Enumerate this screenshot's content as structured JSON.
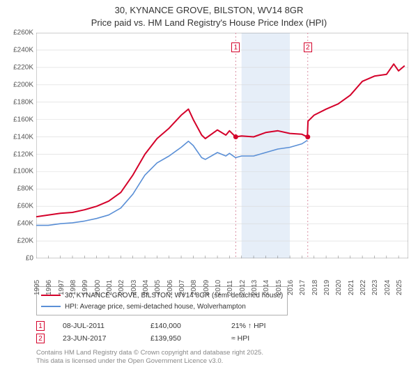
{
  "title": {
    "line1": "30, KYNANCE GROVE, BILSTON, WV14 8GR",
    "line2": "Price paid vs. HM Land Registry's House Price Index (HPI)"
  },
  "chart": {
    "type": "line",
    "background_color": "#ffffff",
    "highlight_band": {
      "x_start": 2012,
      "x_end": 2016,
      "fill": "#e6eef8"
    },
    "grid_color": "#d8d8d8",
    "axis_color": "#888888",
    "x": {
      "min": 1995,
      "max": 2025.8,
      "ticks": [
        1995,
        1996,
        1997,
        1998,
        1999,
        2000,
        2001,
        2002,
        2003,
        2004,
        2005,
        2006,
        2007,
        2008,
        2009,
        2010,
        2011,
        2012,
        2013,
        2014,
        2015,
        2016,
        2017,
        2018,
        2019,
        2020,
        2021,
        2022,
        2023,
        2024,
        2025
      ]
    },
    "y": {
      "min": 0,
      "max": 260000,
      "ticks": [
        0,
        20000,
        40000,
        60000,
        80000,
        100000,
        120000,
        140000,
        160000,
        180000,
        200000,
        220000,
        240000,
        260000
      ],
      "tick_prefix": "£",
      "tick_suffix": "K",
      "tick_divisor": 1000
    },
    "series": [
      {
        "name": "price_paid",
        "label": "30, KYNANCE GROVE, BILSTON, WV14 8GR (semi-detached house)",
        "color": "#d4002a",
        "width": 2,
        "points": [
          [
            1995,
            48000
          ],
          [
            1996,
            50000
          ],
          [
            1997,
            52000
          ],
          [
            1998,
            53000
          ],
          [
            1999,
            56000
          ],
          [
            2000,
            60000
          ],
          [
            2001,
            66000
          ],
          [
            2002,
            76000
          ],
          [
            2003,
            96000
          ],
          [
            2004,
            120000
          ],
          [
            2005,
            138000
          ],
          [
            2006,
            150000
          ],
          [
            2007,
            165000
          ],
          [
            2007.6,
            172000
          ],
          [
            2008,
            160000
          ],
          [
            2008.7,
            142000
          ],
          [
            2009,
            138000
          ],
          [
            2010,
            148000
          ],
          [
            2010.7,
            142000
          ],
          [
            2011,
            147000
          ],
          [
            2011.5,
            140000
          ],
          [
            2012,
            141000
          ],
          [
            2013,
            140000
          ],
          [
            2014,
            145000
          ],
          [
            2015,
            147000
          ],
          [
            2016,
            144000
          ],
          [
            2017,
            143000
          ],
          [
            2017.45,
            139950
          ],
          [
            2017.5,
            158000
          ],
          [
            2018,
            165000
          ],
          [
            2019,
            172000
          ],
          [
            2020,
            178000
          ],
          [
            2021,
            188000
          ],
          [
            2022,
            204000
          ],
          [
            2023,
            210000
          ],
          [
            2024,
            212000
          ],
          [
            2024.6,
            224000
          ],
          [
            2025,
            216000
          ],
          [
            2025.5,
            222000
          ]
        ]
      },
      {
        "name": "hpi",
        "label": "HPI: Average price, semi-detached house, Wolverhampton",
        "color": "#5a8fd6",
        "width": 1.6,
        "points": [
          [
            1995,
            38000
          ],
          [
            1996,
            38000
          ],
          [
            1997,
            40000
          ],
          [
            1998,
            41000
          ],
          [
            1999,
            43000
          ],
          [
            2000,
            46000
          ],
          [
            2001,
            50000
          ],
          [
            2002,
            58000
          ],
          [
            2003,
            74000
          ],
          [
            2004,
            96000
          ],
          [
            2005,
            110000
          ],
          [
            2006,
            118000
          ],
          [
            2007,
            128000
          ],
          [
            2007.6,
            135000
          ],
          [
            2008,
            130000
          ],
          [
            2008.7,
            116000
          ],
          [
            2009,
            114000
          ],
          [
            2010,
            122000
          ],
          [
            2010.7,
            118000
          ],
          [
            2011,
            121000
          ],
          [
            2011.5,
            116000
          ],
          [
            2012,
            118000
          ],
          [
            2013,
            118000
          ],
          [
            2014,
            122000
          ],
          [
            2015,
            126000
          ],
          [
            2016,
            128000
          ],
          [
            2017,
            132000
          ],
          [
            2017.45,
            136000
          ]
        ]
      }
    ],
    "sale_markers": [
      {
        "index": "1",
        "x": 2011.52,
        "y": 140000,
        "color": "#d4002a",
        "guide_color": "#d98fa3"
      },
      {
        "index": "2",
        "x": 2017.48,
        "y": 139950,
        "color": "#d4002a",
        "guide_color": "#d98fa3"
      }
    ]
  },
  "legend": {
    "border_color": "#b0b0b0",
    "items": [
      {
        "color": "#d4002a",
        "text": "30, KYNANCE GROVE, BILSTON, WV14 8GR (semi-detached house)"
      },
      {
        "color": "#5a8fd6",
        "text": "HPI: Average price, semi-detached house, Wolverhampton"
      }
    ]
  },
  "sales": [
    {
      "index": "1",
      "color": "#d4002a",
      "date": "08-JUL-2011",
      "price": "£140,000",
      "delta": "21% ↑ HPI"
    },
    {
      "index": "2",
      "color": "#d4002a",
      "date": "23-JUN-2017",
      "price": "£139,950",
      "delta": "≈ HPI"
    }
  ],
  "footer": {
    "line1": "Contains HM Land Registry data © Crown copyright and database right 2025.",
    "line2": "This data is licensed under the Open Government Licence v3.0."
  }
}
